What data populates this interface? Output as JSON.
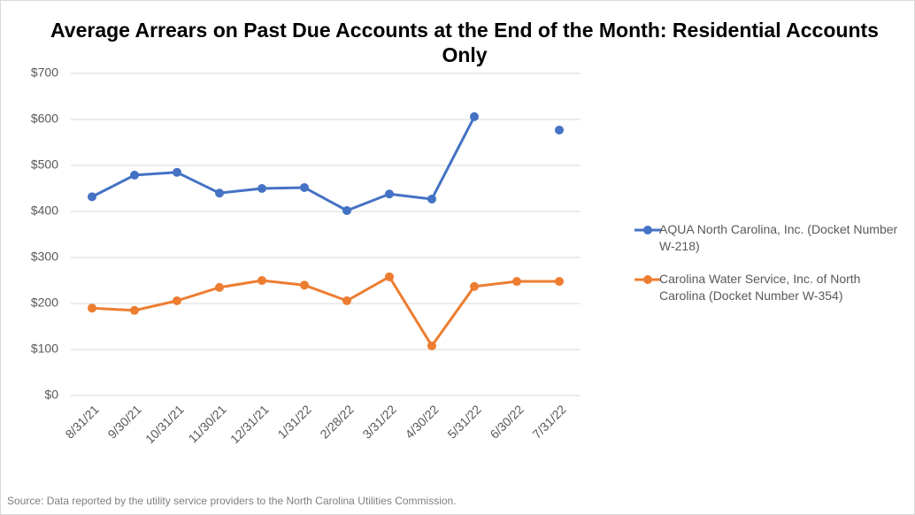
{
  "chart_data": {
    "type": "line",
    "title": "Average Arrears on Past Due Accounts at the End of the Month: Residential Accounts Only",
    "source": "Source: Data reported by the utility service providers to the North Carolina Utilities Commission.",
    "categories": [
      "8/31/21",
      "9/30/21",
      "10/31/21",
      "11/30/21",
      "12/31/21",
      "1/31/22",
      "2/28/22",
      "3/31/22",
      "4/30/22",
      "5/31/22",
      "6/30/22",
      "7/31/22"
    ],
    "series": [
      {
        "name": "AQUA North Carolina, Inc. (Docket Number W-218)",
        "color": "#4472c4",
        "values": [
          432,
          479,
          485,
          440,
          450,
          452,
          402,
          438,
          427,
          606,
          null,
          577
        ]
      },
      {
        "name": "Carolina Water Service, Inc. of North Carolina (Docket Number W-354)",
        "color": "#ed7d31",
        "values": [
          190,
          185,
          206,
          235,
          250,
          240,
          206,
          258,
          108,
          237,
          248,
          248
        ]
      }
    ],
    "ylim": [
      0,
      700
    ],
    "yticks": [
      {
        "value": 0,
        "label": "$0"
      },
      {
        "value": 100,
        "label": "$100"
      },
      {
        "value": 200,
        "label": "$200"
      },
      {
        "value": 300,
        "label": "$300"
      },
      {
        "value": 400,
        "label": "$400"
      },
      {
        "value": 500,
        "label": "$500"
      },
      {
        "value": 600,
        "label": "$600"
      },
      {
        "value": 700,
        "label": "$700"
      }
    ],
    "grid": true,
    "legend": "right"
  }
}
